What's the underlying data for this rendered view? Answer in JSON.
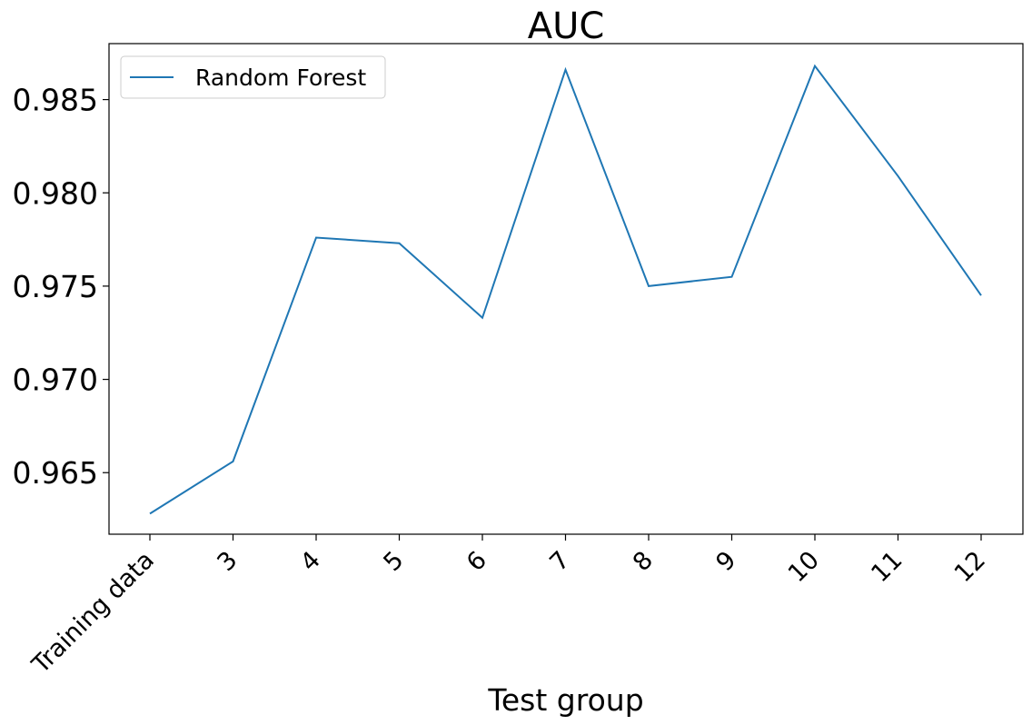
{
  "chart_data": {
    "type": "line",
    "title": "AUC",
    "xlabel": "Test group",
    "ylabel": "",
    "categories": [
      "Training data",
      "3",
      "4",
      "5",
      "6",
      "7",
      "8",
      "9",
      "10",
      "11",
      "12"
    ],
    "series": [
      {
        "name": "Random Forest",
        "color": "#1f77b4",
        "values": [
          0.9628,
          0.9656,
          0.9776,
          0.9773,
          0.9733,
          0.9866,
          0.975,
          0.9755,
          0.9868,
          0.9809,
          0.9745
        ]
      }
    ],
    "ylim": [
      0.9617,
      0.988
    ],
    "yticks": [
      "0.965",
      "0.970",
      "0.975",
      "0.980",
      "0.985"
    ],
    "grid": false,
    "legend": "top-left"
  }
}
